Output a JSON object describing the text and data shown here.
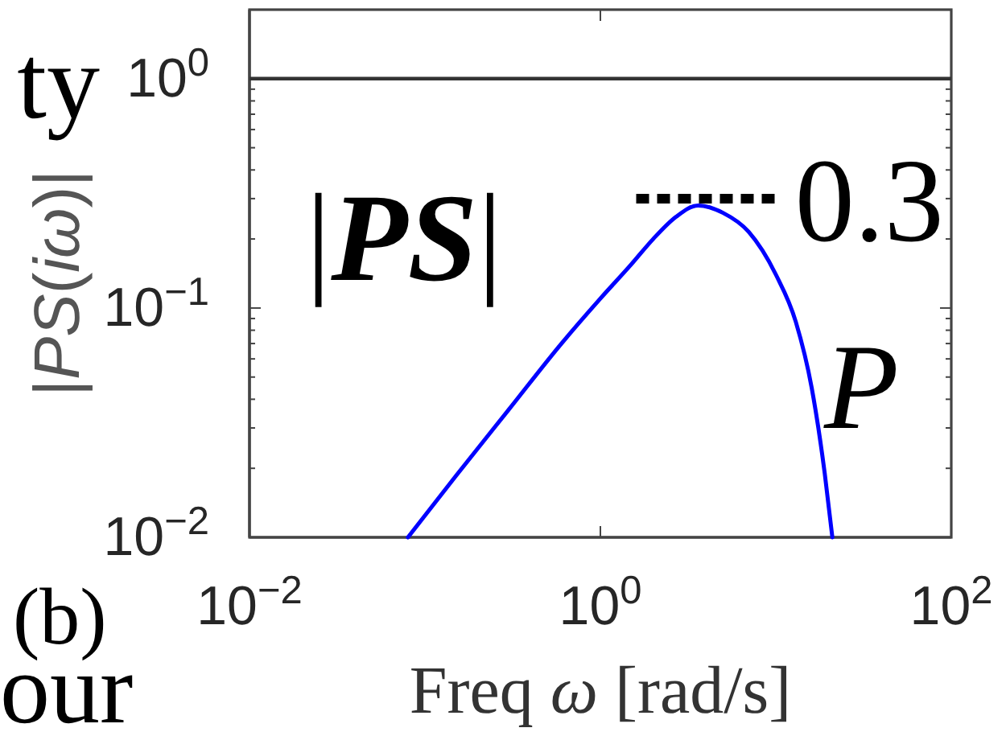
{
  "chart_data": {
    "type": "line",
    "xlabel": "Freq ω [rad/s]",
    "ylabel": "|PS(iω)|",
    "log": "xy",
    "xlim": [
      0.01,
      100
    ],
    "xticks": [
      {
        "value": 0.01,
        "label": "10$^{−2}$"
      },
      {
        "value": 1,
        "label": "10$^{0}$"
      },
      {
        "value": 100,
        "label": "10$^{2}$"
      }
    ],
    "ylim": [
      0.01,
      2
    ],
    "yticks": [
      {
        "value": 0.01,
        "label": "10$^{−2}$"
      },
      {
        "value": 0.02,
        "label": null
      },
      {
        "value": 0.03,
        "label": null
      },
      {
        "value": 0.04,
        "label": null
      },
      {
        "value": 0.05,
        "label": null
      },
      {
        "value": 0.06,
        "label": null
      },
      {
        "value": 0.07,
        "label": null
      },
      {
        "value": 0.08,
        "label": null
      },
      {
        "value": 0.09,
        "label": null
      },
      {
        "value": 0.1,
        "label": "10$^{−1}$"
      },
      {
        "value": 0.2,
        "label": null
      },
      {
        "value": 0.3,
        "label": null
      },
      {
        "value": 0.4,
        "label": null
      },
      {
        "value": 0.5,
        "label": null
      },
      {
        "value": 0.6,
        "label": null
      },
      {
        "value": 0.7,
        "label": null
      },
      {
        "value": 0.8,
        "label": null
      },
      {
        "value": 0.9,
        "label": null
      },
      {
        "value": 1,
        "label": "10$^{0}$"
      }
    ],
    "series": [
      {
        "name": "|PS|",
        "color": "#0000ff",
        "x": [
          0.08,
          0.15,
          0.3,
          0.6,
          1,
          1.5,
          2,
          2.7,
          3.6,
          5,
          7,
          10,
          13,
          16,
          19,
          21
        ],
        "values": [
          0.01,
          0.0185,
          0.036,
          0.07,
          0.11,
          0.155,
          0.2,
          0.25,
          0.28,
          0.26,
          0.215,
          0.14,
          0.087,
          0.045,
          0.019,
          0.01
        ]
      },
      {
        "type": "line",
        "color": "#000000",
        "line_style": "dotted",
        "x": [
          1.6,
          10.4
        ],
        "values": [
          0.3,
          0.3
        ]
      }
    ],
    "ref_lines": [
      {
        "axis": "y",
        "value": 1,
        "color": "#333333"
      }
    ],
    "annotations": [
      {
        "text": "0.3",
        "x": 10.4,
        "y": 0.3
      },
      "P",
      "(b)",
      "ty",
      "our"
    ]
  }
}
